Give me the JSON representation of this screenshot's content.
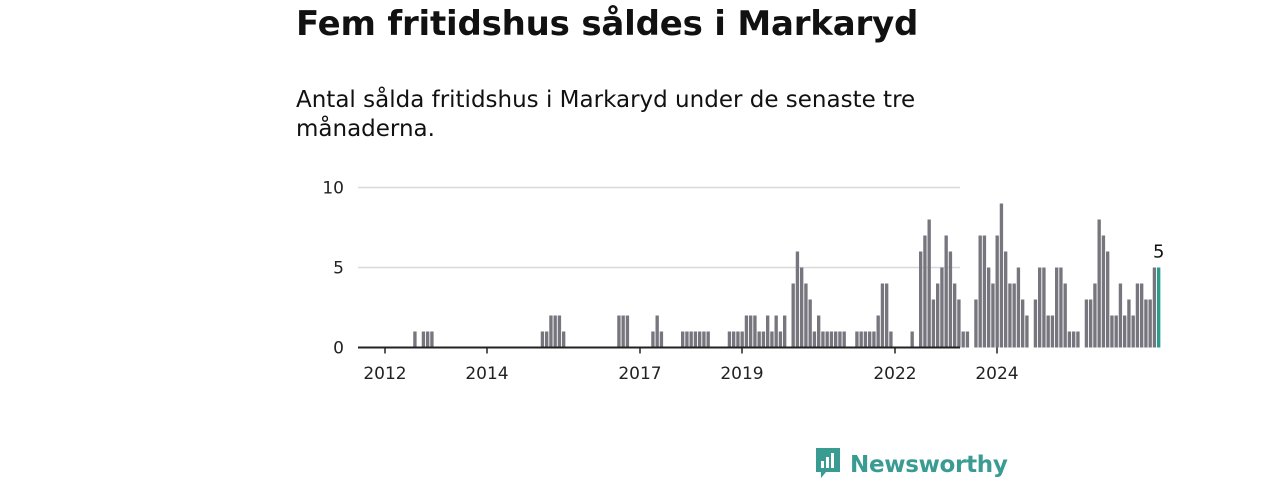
{
  "title": "Fem fritidshus såldes i Markaryd",
  "subtitle": "Antal sålda fritidshus i Markaryd under de senaste tre månaderna.",
  "brand": {
    "name": "Newsworthy",
    "icon": "newsworthy-logo-icon",
    "color": "#3a9b93"
  },
  "colors": {
    "bar": "#77767e",
    "highlight": "#2a9d8f",
    "grid": "#d9d9d9",
    "axis": "#222222"
  },
  "chart_data": {
    "type": "bar",
    "ylim": [
      0,
      10
    ],
    "yticks": [
      0,
      5,
      10
    ],
    "grid": true,
    "x_start_year": 2011,
    "x_end_year": 2025,
    "xticks": [
      "2012",
      "2014",
      "2017",
      "2019",
      "2022",
      "2024"
    ],
    "x_start_month": "2011-09",
    "values": [
      0,
      0,
      0,
      0,
      0,
      0,
      0,
      0,
      0,
      0,
      0,
      1,
      0,
      1,
      1,
      1,
      0,
      0,
      0,
      0,
      0,
      0,
      0,
      0,
      0,
      0,
      0,
      0,
      0,
      0,
      0,
      0,
      0,
      0,
      0,
      0,
      0,
      0,
      0,
      0,
      0,
      1,
      1,
      2,
      2,
      2,
      1,
      0,
      0,
      0,
      0,
      0,
      0,
      0,
      0,
      0,
      0,
      0,
      0,
      2,
      2,
      2,
      0,
      0,
      0,
      0,
      0,
      1,
      2,
      1,
      0,
      0,
      0,
      0,
      1,
      1,
      1,
      1,
      1,
      1,
      1,
      0,
      0,
      0,
      0,
      1,
      1,
      1,
      1,
      2,
      2,
      2,
      1,
      1,
      2,
      1,
      2,
      1,
      2,
      0,
      4,
      6,
      5,
      4,
      3,
      1,
      2,
      1,
      1,
      1,
      1,
      1,
      1,
      0,
      0,
      1,
      1,
      1,
      1,
      1,
      2,
      4,
      4,
      1,
      0,
      0,
      0,
      0,
      1,
      0,
      6,
      7,
      8,
      3,
      4,
      5,
      7,
      6,
      4,
      3,
      1,
      1,
      0,
      3,
      7,
      7,
      5,
      4,
      7,
      9,
      6,
      4,
      4,
      5,
      3,
      2,
      0,
      3,
      5,
      5,
      2,
      2,
      5,
      5,
      4,
      1,
      1,
      1,
      0,
      3,
      3,
      4,
      8,
      7,
      6,
      2,
      2,
      4,
      2,
      3,
      2,
      4,
      4,
      3,
      3,
      5,
      5
    ],
    "highlight_last": true,
    "annotation": "5"
  }
}
